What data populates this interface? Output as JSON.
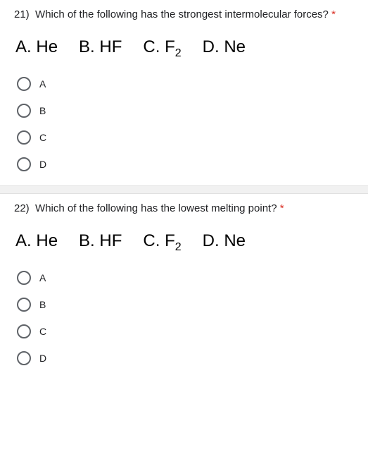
{
  "questions": [
    {
      "number": "21)",
      "prompt": "Which of the following has the strongest intermolecular forces?",
      "required_marker": "*",
      "choices": [
        {
          "letter": "A.",
          "text": "He"
        },
        {
          "letter": "B.",
          "text": "HF"
        },
        {
          "letter": "C.",
          "text": "F",
          "subscript": "2"
        },
        {
          "letter": "D.",
          "text": "Ne"
        }
      ],
      "options": [
        {
          "label": "A"
        },
        {
          "label": "B"
        },
        {
          "label": "C"
        },
        {
          "label": "D"
        }
      ]
    },
    {
      "number": "22)",
      "prompt": "Which of the following has the lowest melting point?",
      "required_marker": "*",
      "choices": [
        {
          "letter": "A.",
          "text": "He"
        },
        {
          "letter": "B.",
          "text": "HF"
        },
        {
          "letter": "C.",
          "text": "F",
          "subscript": "2"
        },
        {
          "letter": "D.",
          "text": "Ne"
        }
      ],
      "options": [
        {
          "label": "A"
        },
        {
          "label": "B"
        },
        {
          "label": "C"
        },
        {
          "label": "D"
        }
      ]
    }
  ],
  "colors": {
    "text": "#202124",
    "required": "#d93025",
    "radio_border": "#5f6368",
    "divider_bg": "#f1f1f1",
    "divider_border": "#e0e0e0",
    "background": "#ffffff"
  }
}
